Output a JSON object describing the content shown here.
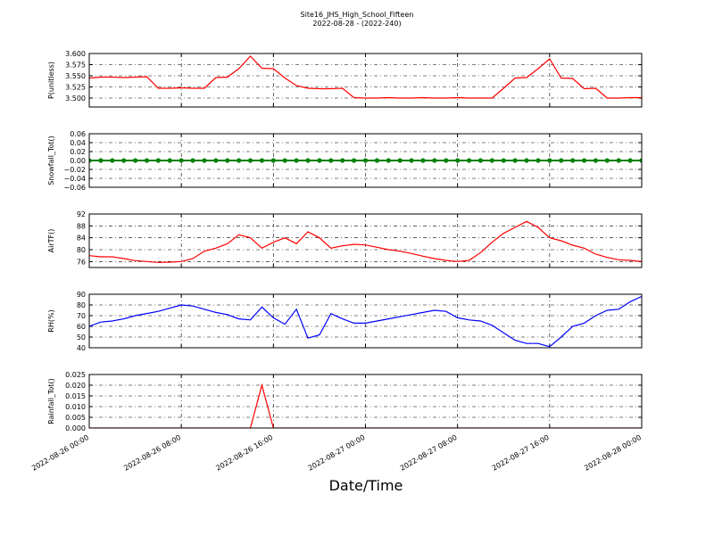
{
  "chart_data": [
    {
      "type": "line",
      "title": "Site16_JHS_High_School_Fifteen",
      "subtitle": "2022-08-28 - (2022-240)",
      "ylabel": "P(unitless)",
      "x": [
        "2022-08-26 00:00",
        "2022-08-26 01:00",
        "2022-08-26 02:00",
        "2022-08-26 03:00",
        "2022-08-26 04:00",
        "2022-08-26 05:00",
        "2022-08-26 06:00",
        "2022-08-26 07:00",
        "2022-08-26 08:00",
        "2022-08-26 09:00",
        "2022-08-26 10:00",
        "2022-08-26 11:00",
        "2022-08-26 12:00",
        "2022-08-26 13:00",
        "2022-08-26 14:00",
        "2022-08-26 15:00",
        "2022-08-26 16:00",
        "2022-08-26 17:00",
        "2022-08-26 18:00",
        "2022-08-26 19:00",
        "2022-08-26 20:00",
        "2022-08-26 21:00",
        "2022-08-26 22:00",
        "2022-08-26 23:00",
        "2022-08-27 00:00",
        "2022-08-27 01:00",
        "2022-08-27 02:00",
        "2022-08-27 03:00",
        "2022-08-27 04:00",
        "2022-08-27 05:00",
        "2022-08-27 06:00",
        "2022-08-27 07:00",
        "2022-08-27 08:00",
        "2022-08-27 09:00",
        "2022-08-27 10:00",
        "2022-08-27 11:00",
        "2022-08-27 12:00",
        "2022-08-27 13:00",
        "2022-08-27 14:00",
        "2022-08-27 15:00",
        "2022-08-27 16:00",
        "2022-08-27 17:00",
        "2022-08-27 18:00",
        "2022-08-27 19:00",
        "2022-08-27 20:00",
        "2022-08-27 21:00",
        "2022-08-27 22:00",
        "2022-08-27 23:00",
        "2022-08-28 00:00"
      ],
      "xlim": [
        "2022-08-26 00:00",
        "2022-08-28 00:00"
      ],
      "ylim": [
        3.48,
        3.6
      ],
      "yticks": [
        {
          "value": 3.5,
          "label": "3.500"
        },
        {
          "value": 3.525,
          "label": "3.525"
        },
        {
          "value": 3.55,
          "label": "3.550"
        },
        {
          "value": 3.575,
          "label": "3.575"
        },
        {
          "value": 3.6,
          "label": "3.600"
        }
      ],
      "grid": true,
      "series": [
        {
          "color": "#ff0000",
          "values": [
            3.545,
            3.547,
            3.547,
            3.546,
            3.547,
            3.548,
            3.522,
            3.522,
            3.523,
            3.522,
            3.522,
            3.546,
            3.547,
            3.566,
            3.594,
            3.567,
            3.566,
            3.545,
            3.528,
            3.522,
            3.521,
            3.521,
            3.522,
            3.501,
            3.5,
            3.5,
            3.501,
            3.5,
            3.5,
            3.501,
            3.5,
            3.5,
            3.501,
            3.5,
            3.5,
            3.5,
            3.522,
            3.545,
            3.546,
            3.566,
            3.588,
            3.545,
            3.544,
            3.521,
            3.522,
            3.5,
            3.5,
            3.501,
            3.501
          ]
        }
      ]
    },
    {
      "type": "line",
      "ylabel": "Snowfall_Tot()",
      "x": [
        "2022-08-26 00:00",
        "2022-08-26 01:00",
        "2022-08-26 02:00",
        "2022-08-26 03:00",
        "2022-08-26 04:00",
        "2022-08-26 05:00",
        "2022-08-26 06:00",
        "2022-08-26 07:00",
        "2022-08-26 08:00",
        "2022-08-26 09:00",
        "2022-08-26 10:00",
        "2022-08-26 11:00",
        "2022-08-26 12:00",
        "2022-08-26 13:00",
        "2022-08-26 14:00",
        "2022-08-26 15:00",
        "2022-08-26 16:00",
        "2022-08-26 17:00",
        "2022-08-26 18:00",
        "2022-08-26 19:00",
        "2022-08-26 20:00",
        "2022-08-26 21:00",
        "2022-08-26 22:00",
        "2022-08-26 23:00",
        "2022-08-27 00:00",
        "2022-08-27 01:00",
        "2022-08-27 02:00",
        "2022-08-27 03:00",
        "2022-08-27 04:00",
        "2022-08-27 05:00",
        "2022-08-27 06:00",
        "2022-08-27 07:00",
        "2022-08-27 08:00",
        "2022-08-27 09:00",
        "2022-08-27 10:00",
        "2022-08-27 11:00",
        "2022-08-27 12:00",
        "2022-08-27 13:00",
        "2022-08-27 14:00",
        "2022-08-27 15:00",
        "2022-08-27 16:00",
        "2022-08-27 17:00",
        "2022-08-27 18:00",
        "2022-08-27 19:00",
        "2022-08-27 20:00",
        "2022-08-27 21:00",
        "2022-08-27 22:00",
        "2022-08-27 23:00",
        "2022-08-28 00:00"
      ],
      "xlim": [
        "2022-08-26 00:00",
        "2022-08-28 00:00"
      ],
      "ylim": [
        -0.06,
        0.06
      ],
      "yticks": [
        {
          "value": -0.06,
          "label": "−0.06"
        },
        {
          "value": -0.04,
          "label": "−0.04"
        },
        {
          "value": -0.02,
          "label": "−0.02"
        },
        {
          "value": 0,
          "label": "0.00"
        },
        {
          "value": 0.02,
          "label": "0.02"
        },
        {
          "value": 0.04,
          "label": "0.04"
        },
        {
          "value": 0.06,
          "label": "0.06"
        }
      ],
      "grid": true,
      "marker": "o",
      "series": [
        {
          "color": "#008000",
          "values": [
            0,
            0,
            0,
            0,
            0,
            0,
            0,
            0,
            0,
            0,
            0,
            0,
            0,
            0,
            0,
            0,
            0,
            0,
            0,
            0,
            0,
            0,
            0,
            0,
            0,
            0,
            0,
            0,
            0,
            0,
            0,
            0,
            0,
            0,
            0,
            0,
            0,
            0,
            0,
            0,
            0,
            0,
            0,
            0,
            0,
            0,
            0,
            0,
            0
          ]
        }
      ]
    },
    {
      "type": "line",
      "ylabel": "AirTF()",
      "x": [
        "2022-08-26 00:00",
        "2022-08-26 01:00",
        "2022-08-26 02:00",
        "2022-08-26 03:00",
        "2022-08-26 04:00",
        "2022-08-26 05:00",
        "2022-08-26 06:00",
        "2022-08-26 07:00",
        "2022-08-26 08:00",
        "2022-08-26 09:00",
        "2022-08-26 10:00",
        "2022-08-26 11:00",
        "2022-08-26 12:00",
        "2022-08-26 13:00",
        "2022-08-26 14:00",
        "2022-08-26 15:00",
        "2022-08-26 16:00",
        "2022-08-26 17:00",
        "2022-08-26 18:00",
        "2022-08-26 19:00",
        "2022-08-26 20:00",
        "2022-08-26 21:00",
        "2022-08-26 22:00",
        "2022-08-26 23:00",
        "2022-08-27 00:00",
        "2022-08-27 01:00",
        "2022-08-27 02:00",
        "2022-08-27 03:00",
        "2022-08-27 04:00",
        "2022-08-27 05:00",
        "2022-08-27 06:00",
        "2022-08-27 07:00",
        "2022-08-27 08:00",
        "2022-08-27 09:00",
        "2022-08-27 10:00",
        "2022-08-27 11:00",
        "2022-08-27 12:00",
        "2022-08-27 13:00",
        "2022-08-27 14:00",
        "2022-08-27 15:00",
        "2022-08-27 16:00",
        "2022-08-27 17:00",
        "2022-08-27 18:00",
        "2022-08-27 19:00",
        "2022-08-27 20:00",
        "2022-08-27 21:00",
        "2022-08-27 22:00",
        "2022-08-27 23:00",
        "2022-08-28 00:00"
      ],
      "xlim": [
        "2022-08-26 00:00",
        "2022-08-28 00:00"
      ],
      "ylim": [
        74,
        92
      ],
      "yticks": [
        76,
        80,
        84,
        88,
        92
      ],
      "grid": true,
      "series": [
        {
          "color": "#ff0000",
          "values": [
            78,
            77.6,
            77.6,
            77,
            76.3,
            76,
            75.7,
            75.8,
            76,
            77,
            79.5,
            80.5,
            82,
            85,
            84,
            80.5,
            82.5,
            84,
            82,
            86,
            84,
            80.5,
            81.3,
            81.8,
            81.6,
            80.8,
            80,
            79.5,
            78.7,
            77.8,
            77,
            76.4,
            76,
            76.4,
            79,
            82.5,
            85.5,
            87.5,
            89.5,
            87.5,
            84,
            83,
            81.5,
            80.5,
            78.5,
            77.4,
            76.6,
            76.4,
            76
          ]
        }
      ]
    },
    {
      "type": "line",
      "ylabel": "RH(%)",
      "x": [
        "2022-08-26 00:00",
        "2022-08-26 01:00",
        "2022-08-26 02:00",
        "2022-08-26 03:00",
        "2022-08-26 04:00",
        "2022-08-26 05:00",
        "2022-08-26 06:00",
        "2022-08-26 07:00",
        "2022-08-26 08:00",
        "2022-08-26 09:00",
        "2022-08-26 10:00",
        "2022-08-26 11:00",
        "2022-08-26 12:00",
        "2022-08-26 13:00",
        "2022-08-26 14:00",
        "2022-08-26 15:00",
        "2022-08-26 16:00",
        "2022-08-26 17:00",
        "2022-08-26 18:00",
        "2022-08-26 19:00",
        "2022-08-26 20:00",
        "2022-08-26 21:00",
        "2022-08-26 22:00",
        "2022-08-26 23:00",
        "2022-08-27 00:00",
        "2022-08-27 01:00",
        "2022-08-27 02:00",
        "2022-08-27 03:00",
        "2022-08-27 04:00",
        "2022-08-27 05:00",
        "2022-08-27 06:00",
        "2022-08-27 07:00",
        "2022-08-27 08:00",
        "2022-08-27 09:00",
        "2022-08-27 10:00",
        "2022-08-27 11:00",
        "2022-08-27 12:00",
        "2022-08-27 13:00",
        "2022-08-27 14:00",
        "2022-08-27 15:00",
        "2022-08-27 16:00",
        "2022-08-27 17:00",
        "2022-08-27 18:00",
        "2022-08-27 19:00",
        "2022-08-27 20:00",
        "2022-08-27 21:00",
        "2022-08-27 22:00",
        "2022-08-27 23:00",
        "2022-08-28 00:00"
      ],
      "xlim": [
        "2022-08-26 00:00",
        "2022-08-28 00:00"
      ],
      "ylim": [
        40,
        90
      ],
      "yticks": [
        40,
        50,
        60,
        70,
        80,
        90
      ],
      "grid": true,
      "series": [
        {
          "color": "#0000ff",
          "values": [
            60,
            64,
            65,
            67,
            70,
            72,
            74,
            77,
            80,
            79,
            76,
            73,
            71,
            67,
            66,
            78,
            68,
            62,
            76,
            49,
            52,
            72,
            67,
            63,
            63,
            65,
            67,
            69,
            71,
            73,
            75,
            74,
            68,
            66,
            65,
            61,
            54,
            47,
            44,
            44,
            41,
            50,
            60,
            63,
            70,
            75,
            76,
            83,
            88
          ]
        }
      ]
    },
    {
      "type": "line",
      "ylabel": "Rainfall_Tot()",
      "xlabel": "Date/Time",
      "x": [
        "2022-08-26 00:00",
        "2022-08-26 01:00",
        "2022-08-26 02:00",
        "2022-08-26 03:00",
        "2022-08-26 04:00",
        "2022-08-26 05:00",
        "2022-08-26 06:00",
        "2022-08-26 07:00",
        "2022-08-26 08:00",
        "2022-08-26 09:00",
        "2022-08-26 10:00",
        "2022-08-26 11:00",
        "2022-08-26 12:00",
        "2022-08-26 13:00",
        "2022-08-26 14:00",
        "2022-08-26 15:00",
        "2022-08-26 16:00",
        "2022-08-26 17:00",
        "2022-08-26 18:00",
        "2022-08-26 19:00",
        "2022-08-26 20:00",
        "2022-08-26 21:00",
        "2022-08-26 22:00",
        "2022-08-26 23:00",
        "2022-08-27 00:00",
        "2022-08-27 01:00",
        "2022-08-27 02:00",
        "2022-08-27 03:00",
        "2022-08-27 04:00",
        "2022-08-27 05:00",
        "2022-08-27 06:00",
        "2022-08-27 07:00",
        "2022-08-27 08:00",
        "2022-08-27 09:00",
        "2022-08-27 10:00",
        "2022-08-27 11:00",
        "2022-08-27 12:00",
        "2022-08-27 13:00",
        "2022-08-27 14:00",
        "2022-08-27 15:00",
        "2022-08-27 16:00",
        "2022-08-27 17:00",
        "2022-08-27 18:00",
        "2022-08-27 19:00",
        "2022-08-27 20:00",
        "2022-08-27 21:00",
        "2022-08-27 22:00",
        "2022-08-27 23:00",
        "2022-08-28 00:00"
      ],
      "xlim": [
        "2022-08-26 00:00",
        "2022-08-28 00:00"
      ],
      "xticks": [
        "2022-08-26 00:00",
        "2022-08-26 08:00",
        "2022-08-26 16:00",
        "2022-08-27 00:00",
        "2022-08-27 08:00",
        "2022-08-27 16:00",
        "2022-08-28 00:00"
      ],
      "ylim": [
        0,
        0.025
      ],
      "yticks": [
        {
          "value": 0,
          "label": "0.000"
        },
        {
          "value": 0.005,
          "label": "0.005"
        },
        {
          "value": 0.01,
          "label": "0.010"
        },
        {
          "value": 0.015,
          "label": "0.015"
        },
        {
          "value": 0.02,
          "label": "0.020"
        },
        {
          "value": 0.025,
          "label": "0.025"
        }
      ],
      "grid": true,
      "series": [
        {
          "color": "#ff0000",
          "values": [
            0,
            0,
            0,
            0,
            0,
            0,
            0,
            0,
            0,
            0,
            0,
            0,
            0,
            0,
            0,
            0.02,
            0,
            0,
            0,
            0,
            0,
            0,
            0,
            0,
            0,
            0,
            0,
            0,
            0,
            0,
            0,
            0,
            0,
            0,
            0,
            0,
            0,
            0,
            0,
            0,
            0,
            0,
            0,
            0,
            0,
            0,
            0,
            0,
            0
          ]
        }
      ]
    }
  ]
}
